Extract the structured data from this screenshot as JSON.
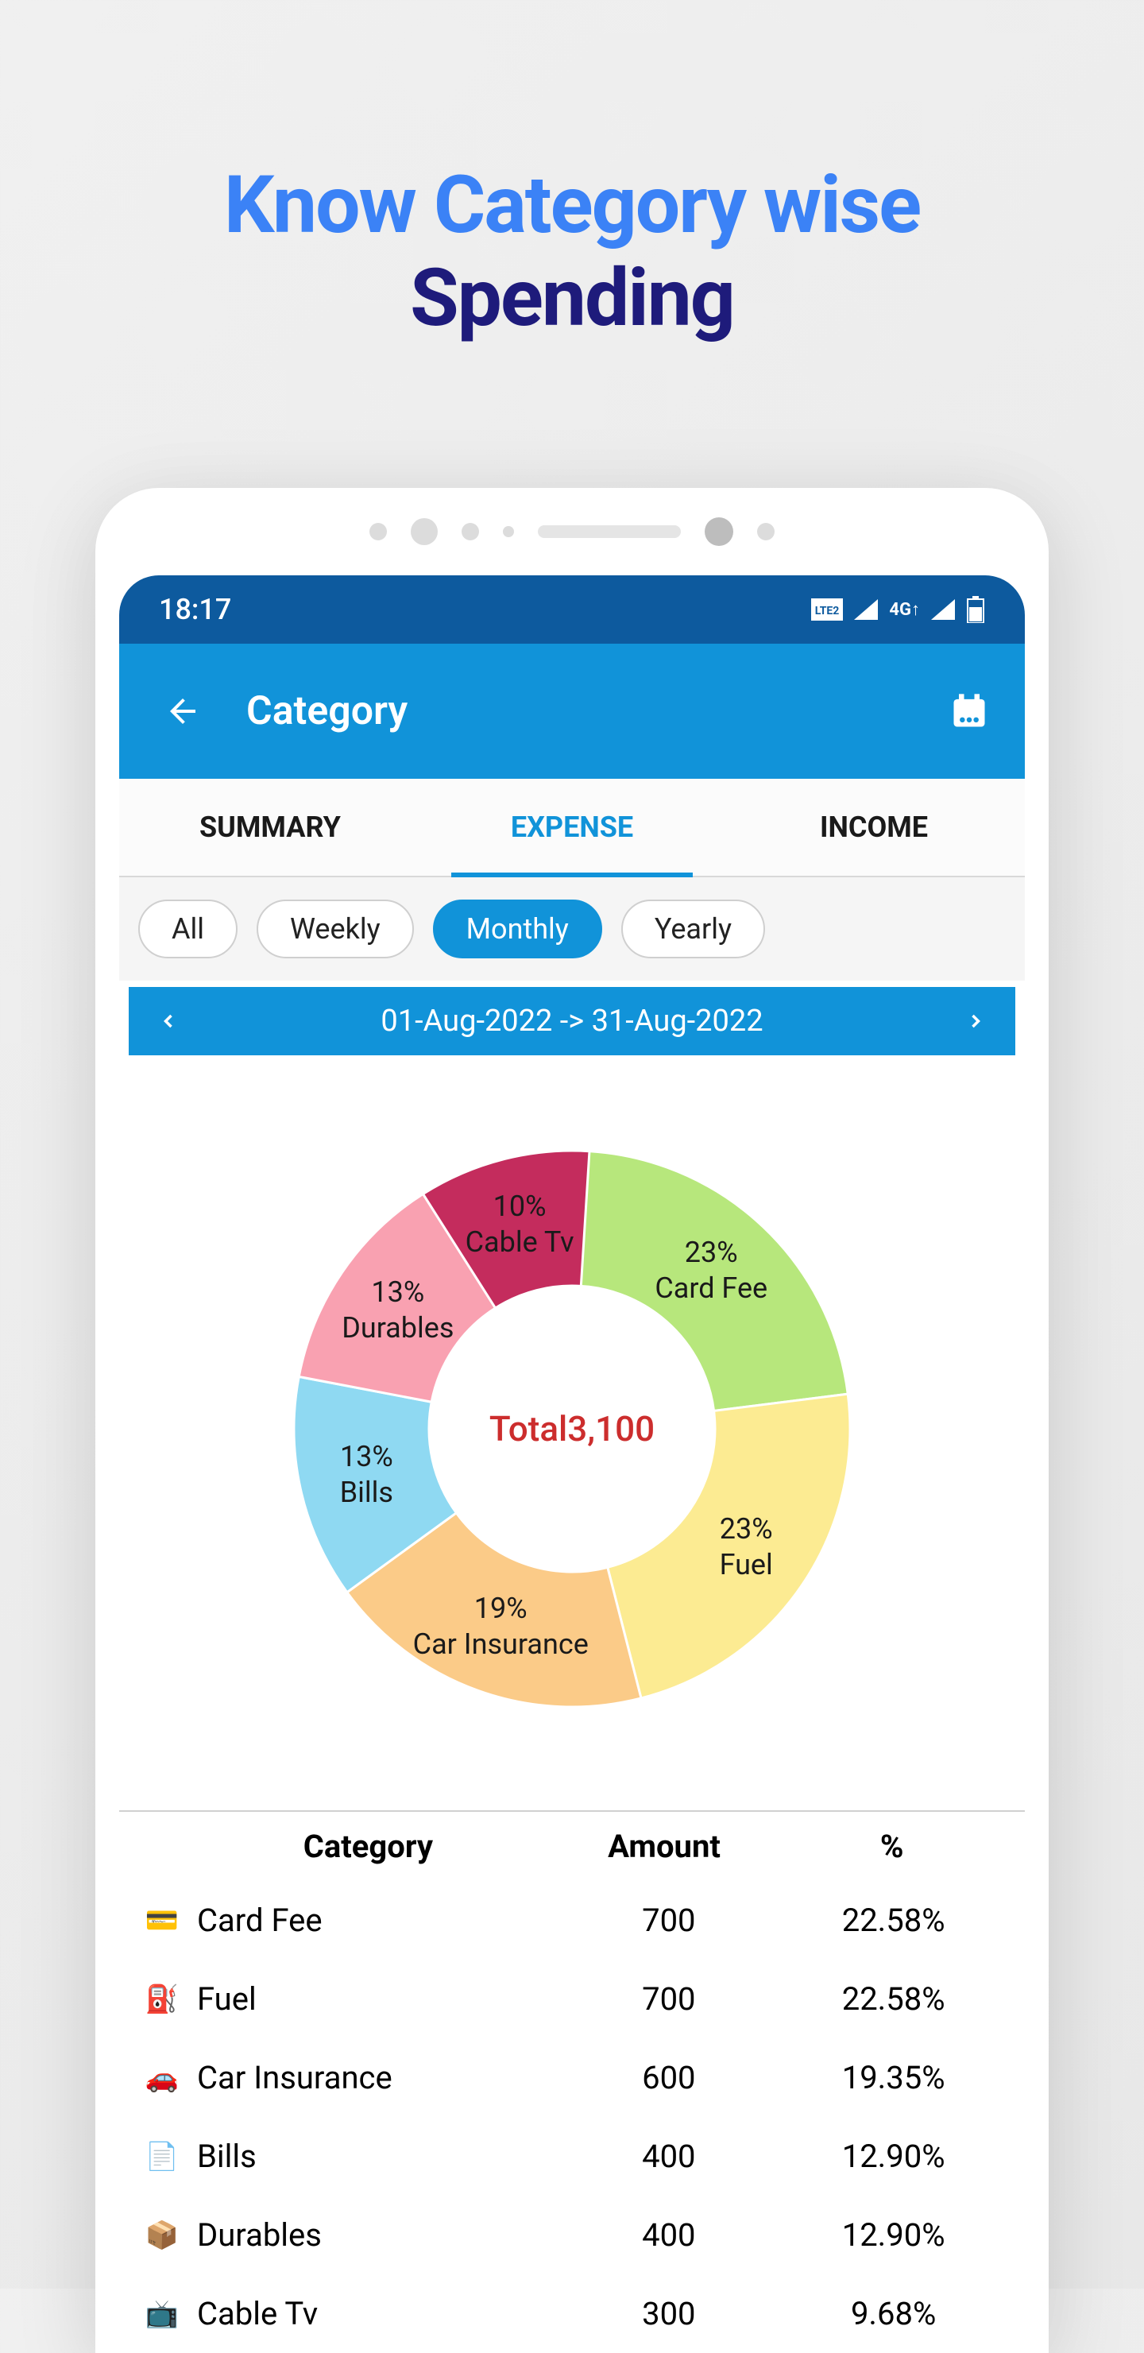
{
  "page_headline": {
    "line1": "Know Category wise",
    "line2": "Spending"
  },
  "statusbar": {
    "time": "18:17"
  },
  "appbar": {
    "title": "Category"
  },
  "tabs": [
    {
      "label": "SUMMARY",
      "active": false
    },
    {
      "label": "EXPENSE",
      "active": true
    },
    {
      "label": "INCOME",
      "active": false
    }
  ],
  "filters": [
    {
      "label": "All",
      "active": false
    },
    {
      "label": "Weekly",
      "active": false
    },
    {
      "label": "Monthly",
      "active": true
    },
    {
      "label": "Yearly",
      "active": false
    }
  ],
  "date_range": {
    "text": "01-Aug-2022 -> 31-Aug-2022"
  },
  "donut": {
    "type": "donut",
    "center_text": "Total3,100",
    "center_color": "#cc2d2d",
    "inner_radius": 180,
    "outer_radius": 350,
    "background_color": "#ffffff",
    "label_fontsize": 36,
    "slices": [
      {
        "name": "Card Fee",
        "percent": 23,
        "color": "#b7e77c",
        "label": "23%\nCard Fee"
      },
      {
        "name": "Fuel",
        "percent": 23,
        "color": "#fceb92",
        "label": "23%\nFuel"
      },
      {
        "name": "Car Insurance",
        "percent": 19,
        "color": "#fbcb88",
        "label": "19%\nCar Insurance"
      },
      {
        "name": "Bills",
        "percent": 13,
        "color": "#8fd9f2",
        "label": "13%\nBills"
      },
      {
        "name": "Durables",
        "percent": 13,
        "color": "#f9a1b1",
        "label": "13%\nDurables"
      },
      {
        "name": "Cable Tv",
        "percent": 10,
        "color": "#c42c5d",
        "label": "10%\nCable Tv"
      }
    ]
  },
  "table": {
    "columns": [
      "Category",
      "Amount",
      "%"
    ],
    "rows": [
      {
        "icon": "💳",
        "category": "Card Fee",
        "amount": "700",
        "percent": "22.58%"
      },
      {
        "icon": "⛽",
        "category": "Fuel",
        "amount": "700",
        "percent": "22.58%"
      },
      {
        "icon": "🚗",
        "category": "Car Insurance",
        "amount": "600",
        "percent": "19.35%"
      },
      {
        "icon": "📄",
        "category": "Bills",
        "amount": "400",
        "percent": "12.90%"
      },
      {
        "icon": "📦",
        "category": "Durables",
        "amount": "400",
        "percent": "12.90%"
      },
      {
        "icon": "📺",
        "category": "Cable Tv",
        "amount": "300",
        "percent": "9.68%"
      }
    ]
  }
}
